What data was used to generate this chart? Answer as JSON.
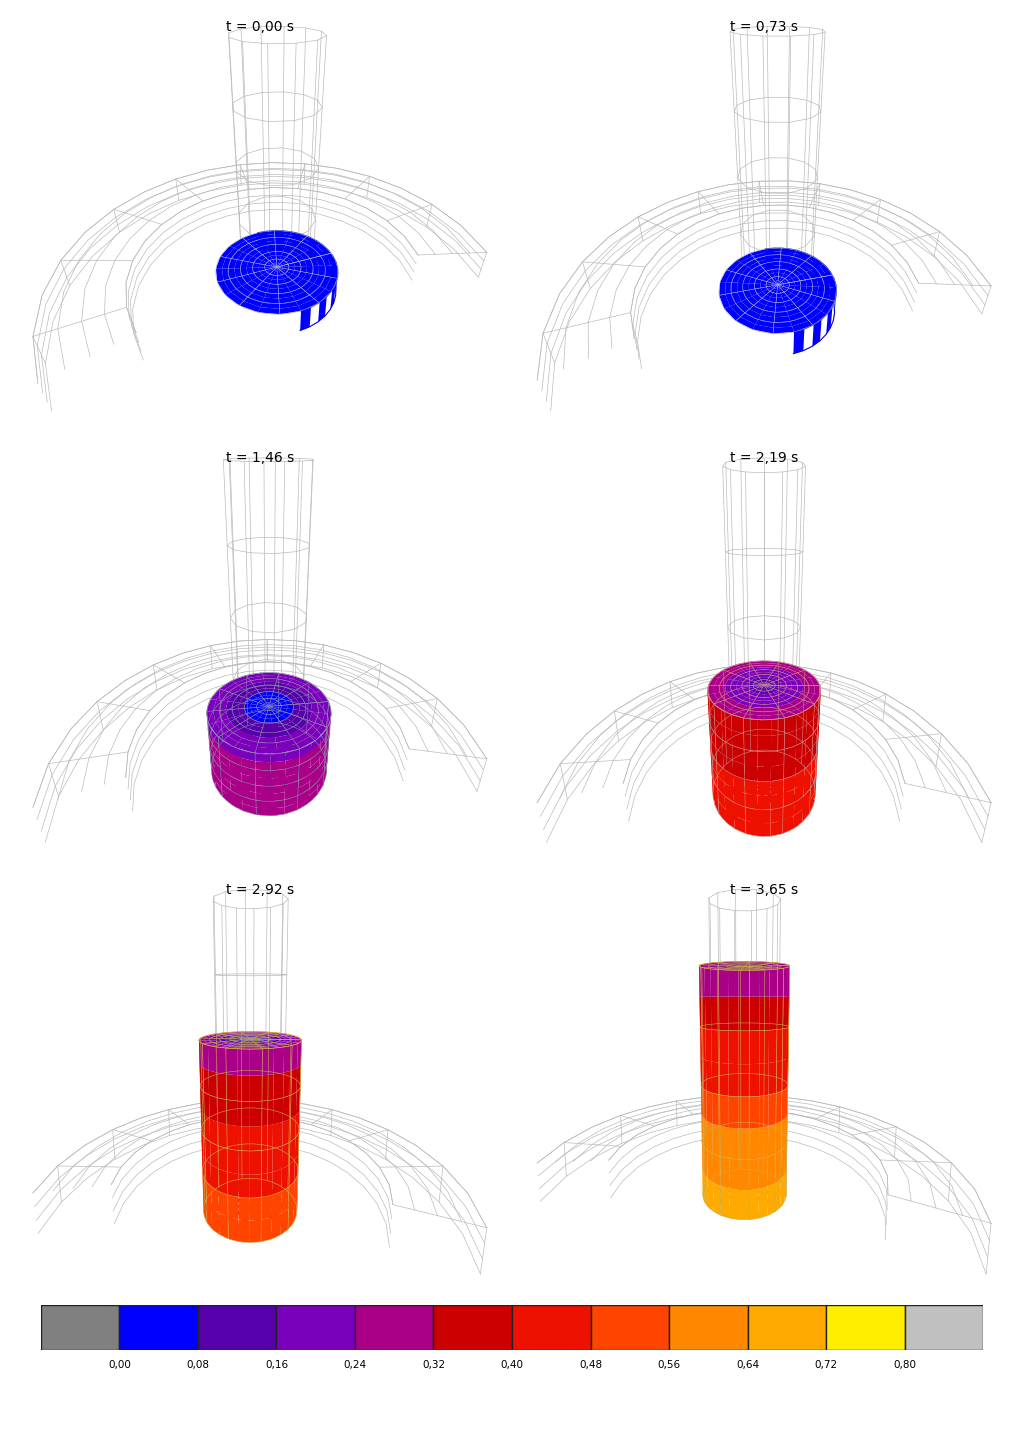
{
  "time_labels": [
    "t = 0,00 s",
    "t = 0,73 s",
    "t = 1,46 s",
    "t = 2,19 s",
    "t = 2,92 s",
    "t = 3,65 s"
  ],
  "colorbar_values": [
    "0,00",
    "0,08",
    "0,16",
    "0,24",
    "0,32",
    "0,40",
    "0,48",
    "0,56",
    "0,64",
    "0,72",
    "0,80"
  ],
  "colorbar_colors": [
    "#808080",
    "#0000ff",
    "#5500aa",
    "#7b00bb",
    "#aa0088",
    "#cc0000",
    "#ee1100",
    "#ff4400",
    "#ff8800",
    "#ffaa00",
    "#ffee00",
    "#c0c0c0"
  ],
  "background_color": "#ffffff",
  "wire_color": "#bbbbbb",
  "mesh_color": "#cccccc",
  "fig_width": 10.24,
  "fig_height": 14.29,
  "dpi": 100,
  "panel_colors": [
    [
      "#0000ff"
    ],
    [
      "#0000ff"
    ],
    [
      "#0000ff",
      "#5500aa",
      "#7b00bb",
      "#aa0088",
      "#cc0000"
    ],
    [
      "#0000ff",
      "#cc0000",
      "#ee1100",
      "#ff4400"
    ],
    [
      "#0000ff",
      "#cc0000",
      "#ee1100",
      "#ff4400",
      "#ff8800",
      "#ffaa00"
    ],
    [
      "#0000ff",
      "#cc0000",
      "#ee1100",
      "#ff4400",
      "#ff8800",
      "#ffaa00",
      "#ffee00"
    ]
  ]
}
